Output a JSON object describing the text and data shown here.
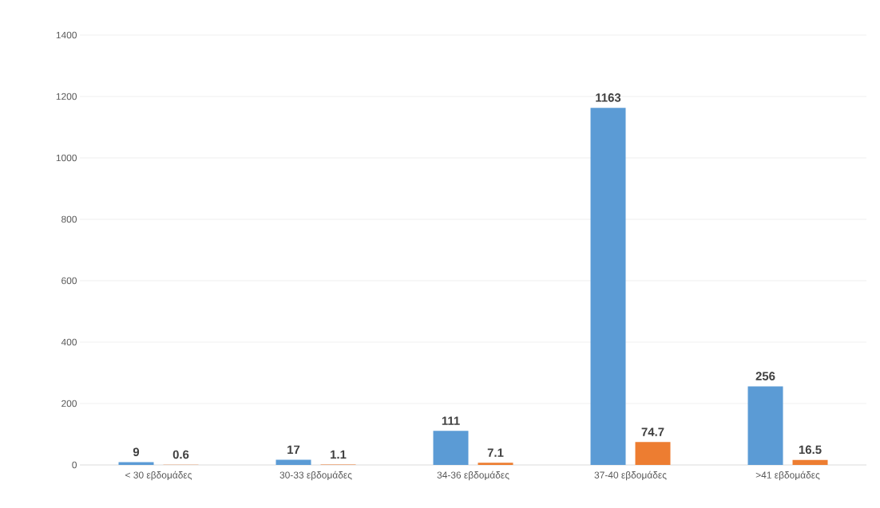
{
  "chart_data": {
    "type": "bar",
    "categories": [
      "< 30 εβδομάδες",
      "30-33 εβδομάδες",
      "34-36 εβδομάδες",
      "37-40 εβδομάδες",
      ">41 εβδομάδες"
    ],
    "series": [
      {
        "color": "#5b9bd5",
        "values": [
          9,
          17,
          111,
          1163,
          256
        ]
      },
      {
        "color": "#ed7d31",
        "values": [
          0.6,
          1.1,
          7.1,
          74.7,
          16.5
        ]
      }
    ],
    "ylim": [
      0,
      1400
    ],
    "yticks": [
      0,
      200,
      400,
      600,
      800,
      1000,
      1200,
      1400
    ],
    "grid": "y",
    "data_labels": true
  }
}
